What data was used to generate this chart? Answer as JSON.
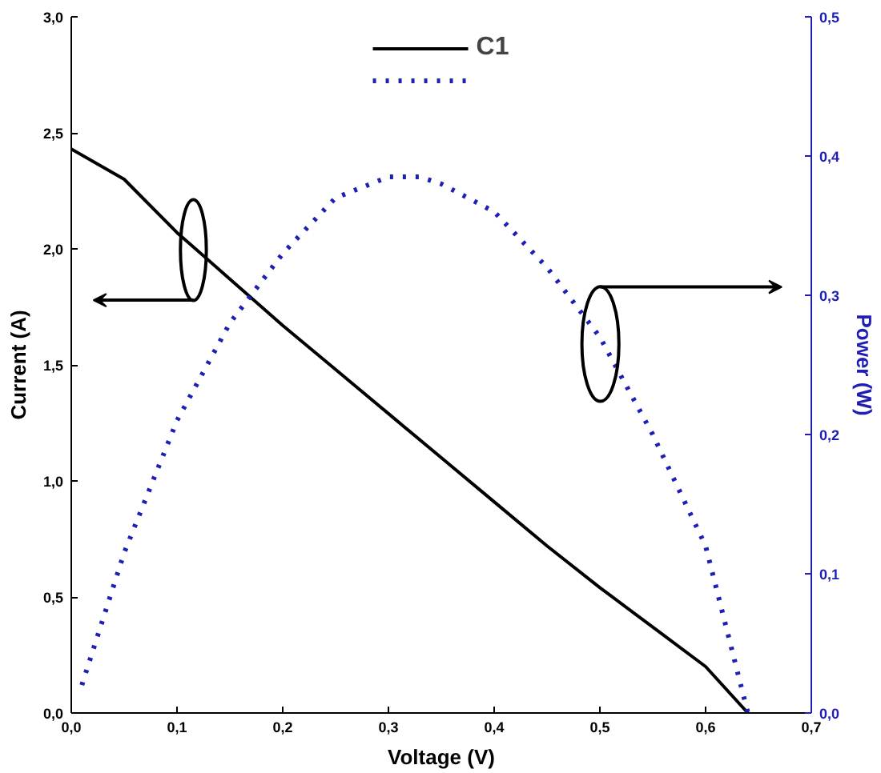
{
  "chart_data": {
    "type": "line",
    "xlabel": "Voltage (V)",
    "ylabel": "Current (A)",
    "y2label": "Power (W)",
    "xlim": [
      0,
      0.7
    ],
    "ylim": [
      0,
      3.0
    ],
    "y2lim": [
      0,
      0.5
    ],
    "xticks": [
      {
        "value": 0,
        "label": "0,0"
      },
      {
        "value": 0.1,
        "label": "0,1"
      },
      {
        "value": 0.2,
        "label": "0,2"
      },
      {
        "value": 0.3,
        "label": "0,3"
      },
      {
        "value": 0.4,
        "label": "0,4"
      },
      {
        "value": 0.5,
        "label": "0,5"
      },
      {
        "value": 0.6,
        "label": "0,6"
      },
      {
        "value": 0.7,
        "label": "0,7"
      }
    ],
    "yticks": [
      {
        "value": 0,
        "label": "0,0"
      },
      {
        "value": 0.5,
        "label": "0,5"
      },
      {
        "value": 1.0,
        "label": "1,0"
      },
      {
        "value": 1.5,
        "label": "1,5"
      },
      {
        "value": 2.0,
        "label": "2,0"
      },
      {
        "value": 2.5,
        "label": "2,5"
      },
      {
        "value": 3.0,
        "label": "3,0"
      }
    ],
    "y2ticks": [
      {
        "value": 0,
        "label": "0,0"
      },
      {
        "value": 0.1,
        "label": "0,1"
      },
      {
        "value": 0.2,
        "label": "0,2"
      },
      {
        "value": 0.3,
        "label": "0,3"
      },
      {
        "value": 0.4,
        "label": "0,4"
      },
      {
        "value": 0.5,
        "label": "0,5"
      }
    ],
    "legend": "top",
    "grid": false,
    "series": [
      {
        "name": "C1",
        "color": "#000000",
        "line_style": "solid",
        "x": [
          0,
          0.05,
          0.1,
          0.15,
          0.2,
          0.25,
          0.3,
          0.35,
          0.4,
          0.45,
          0.5,
          0.55,
          0.6,
          0.64
        ],
        "values": [
          2.43,
          2.3,
          2.07,
          1.87,
          1.67,
          1.48,
          1.29,
          1.1,
          0.91,
          0.72,
          0.54,
          0.37,
          0.2,
          0.0
        ]
      },
      {
        "color": "#1f1fb4",
        "line_style": "dotted",
        "axis": "y2",
        "x": [
          0.01,
          0.05,
          0.1,
          0.15,
          0.2,
          0.25,
          0.3,
          0.33,
          0.35,
          0.4,
          0.45,
          0.5,
          0.55,
          0.6,
          0.64
        ],
        "values": [
          0.02,
          0.115,
          0.21,
          0.28,
          0.33,
          0.37,
          0.385,
          0.385,
          0.38,
          0.36,
          0.32,
          0.27,
          0.2,
          0.12,
          0.0
        ]
      }
    ]
  }
}
